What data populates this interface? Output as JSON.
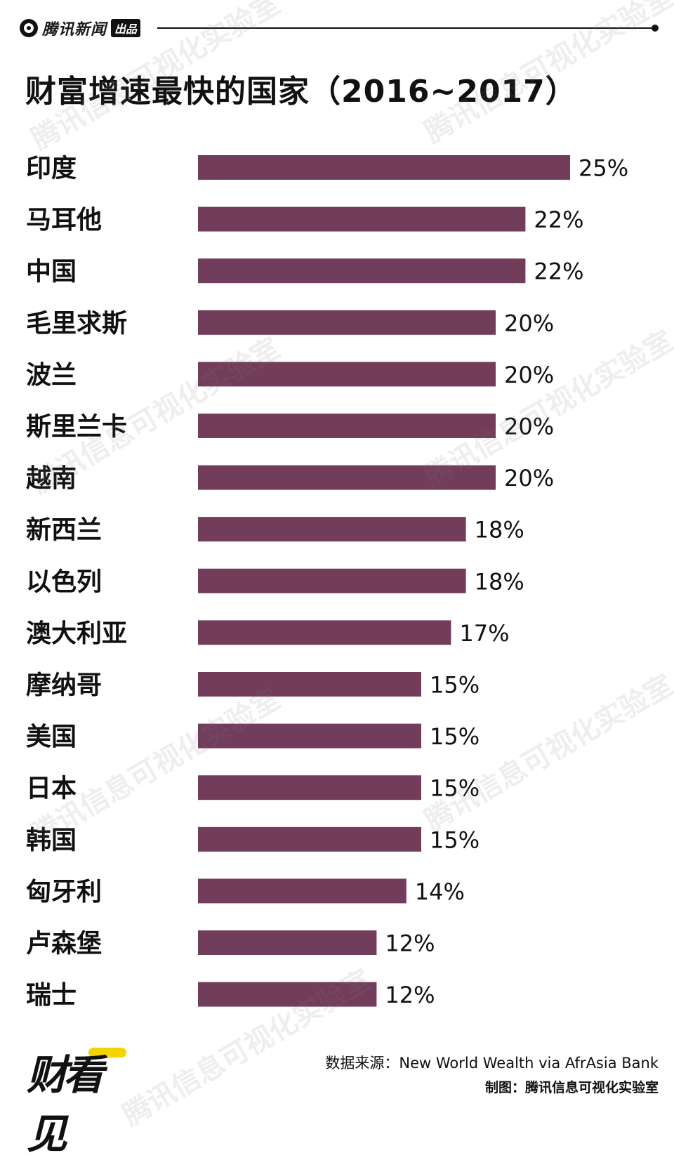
{
  "header": {
    "brand_name": "腾讯新闻",
    "brand_tag": "出品"
  },
  "title": "财富增速最快的国家（2016~2017）",
  "watermark_text": "腾讯信息可视化实验室",
  "footer": {
    "logo_text": "财看见",
    "source": "数据来源：New World Wealth via AfrAsia Bank",
    "credit": "制图：腾讯信息可视化实验室"
  },
  "colors": {
    "bar": "#723c5b"
  },
  "chart_data": {
    "type": "bar",
    "orientation": "horizontal",
    "title": "财富增速最快的国家（2016~2017）",
    "categories": [
      "印度",
      "马耳他",
      "中国",
      "毛里求斯",
      "波兰",
      "斯里兰卡",
      "越南",
      "新西兰",
      "以色列",
      "澳大利亚",
      "摩纳哥",
      "美国",
      "日本",
      "韩国",
      "匈牙利",
      "卢森堡",
      "瑞士"
    ],
    "values": [
      25,
      22,
      22,
      20,
      20,
      20,
      20,
      18,
      18,
      17,
      15,
      15,
      15,
      15,
      14,
      12,
      12
    ],
    "value_labels": [
      "25%",
      "22%",
      "22%",
      "20%",
      "20%",
      "20%",
      "20%",
      "18%",
      "18%",
      "17%",
      "15%",
      "15%",
      "15%",
      "15%",
      "14%",
      "12%",
      "12%"
    ],
    "unit": "%",
    "xlim": [
      0,
      25
    ],
    "grid": false,
    "legend": "none"
  }
}
